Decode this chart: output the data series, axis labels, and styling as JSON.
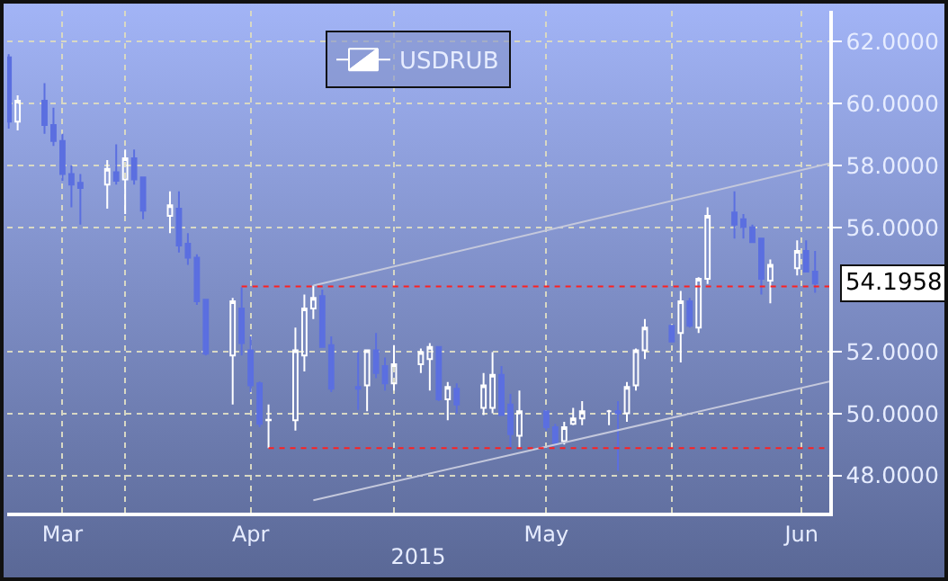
{
  "chart_data": {
    "type": "candlestick",
    "xlabel": "2015",
    "x": [
      "2015-03-19",
      "2015-03-20",
      "2015-03-23",
      "2015-03-24",
      "2015-03-25",
      "2015-03-26",
      "2015-03-27",
      "2015-03-30",
      "2015-03-31",
      "2015-04-01",
      "2015-04-02",
      "2015-04-03",
      "2015-04-06",
      "2015-04-07",
      "2015-04-08",
      "2015-04-09",
      "2015-04-10",
      "2015-04-13",
      "2015-04-14",
      "2015-04-15",
      "2015-04-16",
      "2015-04-17",
      "2015-04-20",
      "2015-04-21",
      "2015-04-22",
      "2015-04-23",
      "2015-04-24",
      "2015-04-27",
      "2015-04-28",
      "2015-04-29",
      "2015-04-30",
      "2015-05-01",
      "2015-05-04",
      "2015-05-05",
      "2015-05-06",
      "2015-05-07",
      "2015-05-08",
      "2015-05-11",
      "2015-05-12",
      "2015-05-13",
      "2015-05-14",
      "2015-05-15",
      "2015-05-18",
      "2015-05-19",
      "2015-05-20",
      "2015-05-21",
      "2015-05-22",
      "2015-05-25",
      "2015-05-26",
      "2015-05-27",
      "2015-05-28",
      "2015-05-29",
      "2015-06-01",
      "2015-06-02",
      "2015-06-03",
      "2015-06-04",
      "2015-06-05",
      "2015-06-08",
      "2015-06-09",
      "2015-06-10",
      "2015-06-11",
      "2015-06-12",
      "2015-06-15",
      "2015-06-16",
      "2015-06-17"
    ],
    "series": [
      {
        "name": "USDRUB",
        "colors": [
          "#5b6fe0",
          "#ffffff",
          "#5b6fe0",
          "#5b6fe0",
          "#5b6fe0",
          "#5b6fe0",
          "#5b6fe0",
          "#ffffff",
          "#5b6fe0",
          "#ffffff",
          "#5b6fe0",
          "#5b6fe0",
          "#ffffff",
          "#5b6fe0",
          "#5b6fe0",
          "#5b6fe0",
          "#5b6fe0",
          "#ffffff",
          "#5b6fe0",
          "#5b6fe0",
          "#5b6fe0",
          "#ffffff",
          "#ffffff",
          "#ffffff",
          "#ffffff",
          "#5b6fe0",
          "#5b6fe0",
          "#5b6fe0",
          "#ffffff",
          "#5b6fe0",
          "#5b6fe0",
          "#ffffff",
          "#ffffff",
          "#ffffff",
          "#5b6fe0",
          "#ffffff",
          "#5b6fe0",
          "#ffffff",
          "#ffffff",
          "#5b6fe0",
          "#5b6fe0",
          "#ffffff",
          "#5b6fe0",
          "#5b6fe0",
          "#ffffff",
          "#ffffff",
          "#ffffff",
          "#ffffff",
          "#5b6fe0",
          "#ffffff",
          "#ffffff",
          "#ffffff",
          "#5b6fe0",
          "#ffffff",
          "#5b6fe0",
          "#ffffff",
          "#ffffff",
          "#5b6fe0",
          "#5b6fe0",
          "#5b6fe0",
          "#5b6fe0",
          "#ffffff",
          "#ffffff",
          "#5b6fe0",
          "#5b6fe0"
        ],
        "ohlc": [
          [
            61.5,
            61.6,
            59.2,
            59.42
          ],
          [
            59.42,
            60.27,
            59.14,
            60.1
          ],
          [
            60.1,
            60.66,
            59.03,
            59.31
          ],
          [
            59.31,
            59.87,
            58.64,
            58.8
          ],
          [
            58.8,
            59.03,
            57.51,
            57.73
          ],
          [
            57.73,
            58.01,
            56.66,
            57.39
          ],
          [
            57.45,
            57.73,
            56.1,
            57.28
          ],
          [
            57.39,
            58.18,
            56.61,
            57.9
          ],
          [
            57.79,
            58.69,
            57.39,
            57.51
          ],
          [
            57.56,
            58.52,
            56.44,
            58.24
          ],
          [
            58.24,
            58.52,
            57.39,
            57.56
          ],
          [
            57.62,
            57.62,
            56.27,
            56.55
          ],
          [
            56.38,
            57.17,
            55.82,
            56.72
          ],
          [
            56.61,
            57.17,
            55.2,
            55.42
          ],
          [
            55.48,
            55.82,
            54.8,
            55.03
          ],
          [
            55.03,
            55.14,
            53.51,
            53.62
          ],
          [
            53.67,
            53.67,
            51.87,
            51.93
          ],
          [
            51.87,
            53.73,
            50.29,
            53.62
          ],
          [
            53.39,
            54.07,
            51.87,
            52.27
          ],
          [
            52.04,
            52.49,
            50.69,
            50.91
          ],
          [
            50.97,
            51.03,
            49.56,
            49.67
          ],
          [
            49.78,
            50.29,
            48.88,
            49.8
          ],
          [
            49.78,
            52.77,
            49.45,
            52.04
          ],
          [
            51.87,
            53.84,
            51.36,
            53.39
          ],
          [
            53.39,
            54.13,
            53.05,
            53.73
          ],
          [
            53.79,
            54.0,
            52.15,
            52.15
          ],
          [
            52.21,
            52.49,
            50.69,
            50.8
          ],
          [
            50.86,
            51.98,
            50.12,
            50.8
          ],
          [
            50.91,
            52.04,
            50.07,
            52.04
          ],
          [
            52.04,
            52.6,
            51.14,
            51.31
          ],
          [
            51.53,
            51.81,
            50.74,
            50.97
          ],
          [
            50.97,
            52.21,
            50.74,
            51.59
          ],
          [
            51.59,
            52.1,
            51.31,
            51.98
          ],
          [
            51.76,
            52.27,
            50.74,
            52.15
          ],
          [
            52.15,
            52.15,
            50.4,
            50.46
          ],
          [
            50.46,
            51.02,
            49.78,
            50.86
          ],
          [
            50.8,
            50.97,
            50.01,
            50.29
          ],
          [
            50.18,
            51.31,
            49.95,
            50.91
          ],
          [
            50.18,
            51.98,
            50.01,
            51.25
          ],
          [
            51.25,
            51.53,
            49.95,
            49.95
          ],
          [
            50.29,
            50.63,
            48.88,
            49.33
          ],
          [
            49.28,
            50.74,
            48.88,
            50.07
          ],
          [
            50.07,
            50.07,
            49.45,
            49.56
          ],
          [
            49.56,
            49.67,
            48.94,
            49.05
          ],
          [
            49.11,
            49.73,
            49.0,
            49.56
          ],
          [
            49.67,
            50.18,
            49.62,
            49.84
          ],
          [
            49.84,
            50.4,
            49.62,
            50.07
          ],
          [
            50.07,
            50.12,
            49.62,
            50.07
          ],
          [
            50.07,
            50.4,
            48.15,
            50.01
          ],
          [
            50.01,
            51.02,
            49.73,
            50.86
          ],
          [
            50.91,
            52.1,
            50.74,
            52.04
          ],
          [
            52.04,
            53.05,
            51.76,
            52.77
          ],
          [
            52.83,
            52.83,
            52.32,
            52.32
          ],
          [
            52.6,
            53.96,
            51.65,
            53.62
          ],
          [
            53.62,
            53.73,
            52.77,
            52.83
          ],
          [
            52.77,
            54.4,
            52.6,
            54.35
          ],
          [
            54.35,
            56.66,
            54.18,
            56.38
          ],
          [
            56.49,
            57.17,
            55.65,
            56.1
          ],
          [
            56.27,
            56.44,
            55.65,
            56.01
          ],
          [
            56.01,
            56.1,
            55.53,
            55.53
          ],
          [
            55.65,
            55.65,
            53.84,
            54.35
          ],
          [
            54.29,
            54.97,
            53.56,
            54.8
          ],
          [
            54.69,
            55.59,
            54.46,
            55.25
          ],
          [
            55.25,
            55.59,
            54.58,
            54.58
          ],
          [
            54.58,
            55.25,
            53.9,
            54.1958
          ]
        ]
      },
      {
        "type": "line",
        "color": "#c4c8dc",
        "line_style": "solid",
        "x": [
          "2015-04-22",
          "2015-06-18T14:00"
        ],
        "values": [
          54.13,
          58.07
        ]
      },
      {
        "type": "line",
        "color": "#c4c8dc",
        "line_style": "solid",
        "x": [
          "2015-04-22",
          "2015-06-18T14:00"
        ],
        "values": [
          47.2,
          51.03
        ]
      },
      {
        "type": "line",
        "color": "#ff2020",
        "line_style": "dotted",
        "x": [
          "2015-04-14",
          "2015-06-18T14:00"
        ],
        "values": [
          54.1,
          54.1
        ]
      },
      {
        "type": "line",
        "color": "#ff2020",
        "line_style": "dotted",
        "x": [
          "2015-04-17",
          "2015-06-18T14:00"
        ],
        "values": [
          48.88,
          48.88
        ]
      }
    ],
    "annotations": [
      {
        "text": "54.1958",
        "x": "2015-06-18T14:00",
        "y": 54.1958
      }
    ],
    "xlim": [
      "2015-03-18T20:00",
      "2015-06-18T14:00"
    ],
    "xticks": [
      {
        "value": "2015-03-25",
        "label": "Mar"
      },
      {
        "value": "2015-04-01",
        "label": null
      },
      {
        "value": "2015-04-15",
        "label": "Apr"
      },
      {
        "value": "2015-05-01",
        "label": null
      },
      {
        "value": "2015-05-18",
        "label": "May"
      },
      {
        "value": "2015-06-01",
        "label": null
      },
      {
        "value": "2015-06-15T12:00",
        "label": "Jun"
      }
    ],
    "ylim": [
      46.8,
      63.0
    ],
    "yticks": [
      {
        "value": 48,
        "label": "48.0000"
      },
      {
        "value": 50,
        "label": "50.0000"
      },
      {
        "value": 52,
        "label": "52.0000"
      },
      {
        "value": 56,
        "label": "56.0000"
      },
      {
        "value": 58,
        "label": "58.0000"
      },
      {
        "value": 60,
        "label": "60.0000"
      },
      {
        "value": 62,
        "label": "62.0000"
      }
    ],
    "grid": true,
    "legend": "top"
  }
}
